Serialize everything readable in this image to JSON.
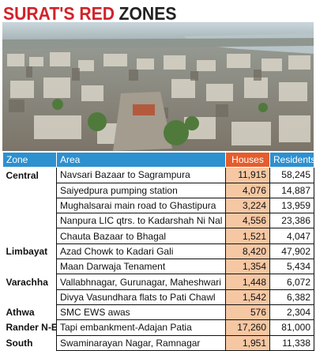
{
  "header": {
    "title_red": "SURAT'S RED",
    "title_black": "ZONES"
  },
  "photo": {
    "description_icon": "aerial-city-photo"
  },
  "table": {
    "columns": [
      "Zone",
      "Area",
      "Houses",
      "Residents"
    ],
    "rows": [
      {
        "zone": "Central",
        "area": "Navsari Bazaar to Sagrampura",
        "houses": "11,915",
        "residents": "58,245"
      },
      {
        "zone": "",
        "area": "Saiyedpura pumping station",
        "houses": "4,076",
        "residents": "14,887"
      },
      {
        "zone": "",
        "area": "Mughalsarai main road to Ghastipura",
        "houses": "3,224",
        "residents": "13,959"
      },
      {
        "zone": "",
        "area": "Nanpura LIC qtrs. to Kadarshah Ni Nal",
        "houses": "4,556",
        "residents": "23,386"
      },
      {
        "zone": "",
        "area": "Chauta Bazaar to Bhagal",
        "houses": "1,521",
        "residents": "4,047"
      },
      {
        "zone": "Limbayat",
        "area": "Azad Chowk to Kadari Gali",
        "houses": "8,420",
        "residents": "47,902"
      },
      {
        "zone": "",
        "area": "Maan Darwaja Tenament",
        "houses": "1,354",
        "residents": "5,434"
      },
      {
        "zone": "Varachha",
        "area": "Vallabhnagar, Gurunagar, Maheshwari",
        "houses": "1,448",
        "residents": "6,072"
      },
      {
        "zone": "",
        "area": "Divya Vasundhara flats to Pati Chawl",
        "houses": "1,542",
        "residents": "6,382"
      },
      {
        "zone": "Athwa",
        "area": "SMC EWS awas",
        "houses": "576",
        "residents": "2,304"
      },
      {
        "zone": "Rander N-E",
        "area": "Tapi embankment-Adajan Patia",
        "houses": "17,260",
        "residents": "81,000"
      },
      {
        "zone": "South",
        "area": "Swaminarayan Nagar, Ramnagar",
        "houses": "1,951",
        "residents": "11,338"
      }
    ]
  },
  "colors": {
    "title_red": "#d2232a",
    "header_blue": "#2d90cf",
    "header_orange": "#e45d2c",
    "houses_fill": "#f6c7a3"
  }
}
